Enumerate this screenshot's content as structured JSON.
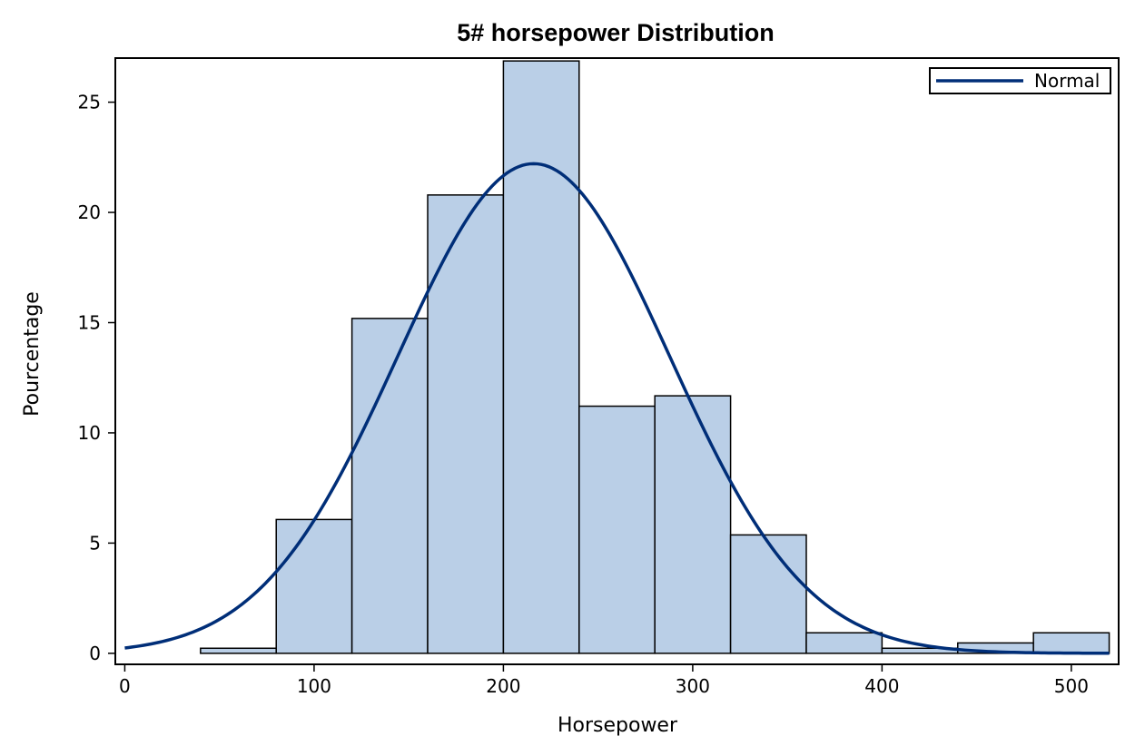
{
  "chart_data": {
    "type": "bar",
    "title": "5# horsepower Distribution",
    "xlabel": "Horsepower",
    "ylabel": "Pourcentage",
    "xlim": [
      -5,
      525
    ],
    "ylim": [
      -0.5,
      27
    ],
    "xticks": [
      0,
      100,
      200,
      300,
      400,
      500
    ],
    "yticks": [
      0,
      5,
      10,
      15,
      20,
      25
    ],
    "bins": [
      {
        "start": 40,
        "end": 80,
        "value": 0.23
      },
      {
        "start": 80,
        "end": 120,
        "value": 6.07
      },
      {
        "start": 120,
        "end": 160,
        "value": 15.19
      },
      {
        "start": 160,
        "end": 200,
        "value": 20.79
      },
      {
        "start": 200,
        "end": 240,
        "value": 26.87
      },
      {
        "start": 240,
        "end": 280,
        "value": 11.21
      },
      {
        "start": 280,
        "end": 320,
        "value": 11.68
      },
      {
        "start": 320,
        "end": 360,
        "value": 5.37
      },
      {
        "start": 360,
        "end": 400,
        "value": 0.93
      },
      {
        "start": 400,
        "end": 440,
        "value": 0.23
      },
      {
        "start": 440,
        "end": 480,
        "value": 0.47
      },
      {
        "start": 480,
        "end": 520,
        "value": 0.93
      }
    ],
    "normal_curve": {
      "name": "Normal",
      "mean": 216.0,
      "sd": 71.85,
      "peak": 22.21,
      "x_range": [
        0,
        520
      ]
    },
    "legend": {
      "position": "top-right",
      "entries": [
        "Normal"
      ]
    },
    "grid": false,
    "colors": {
      "bar_fill": "#bacfe7",
      "bar_edge": "#000000",
      "curve": "#002e78",
      "frame": "#000000"
    }
  }
}
